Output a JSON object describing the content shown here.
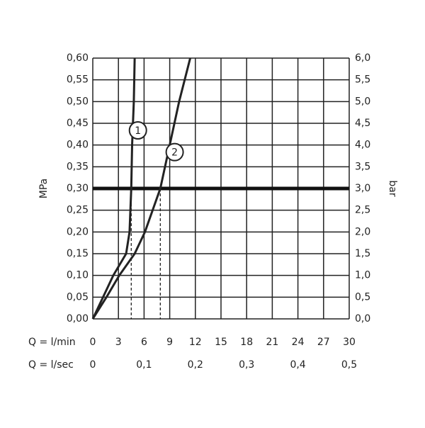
{
  "chart_data": {
    "type": "line",
    "x_label": "Q = l/min",
    "x2_label": "Q = l/sec",
    "y_label": "MPa",
    "y2_label": "bar",
    "xlim": [
      0,
      30
    ],
    "xticks": [
      0,
      3,
      6,
      9,
      12,
      15,
      18,
      21,
      24,
      27,
      30
    ],
    "x2lim": [
      0,
      0.5
    ],
    "x2ticks": [
      0,
      {
        "value": 0.1,
        "label": "0,1"
      },
      {
        "value": 0.2,
        "label": "0,2"
      },
      {
        "value": 0.3,
        "label": "0,3"
      },
      {
        "value": 0.4,
        "label": "0,4"
      },
      {
        "value": 0.5,
        "label": "0,5"
      }
    ],
    "ylim": [
      0,
      0.6
    ],
    "yticks": [
      {
        "value": 0,
        "label": "0,00"
      },
      {
        "value": 0.05,
        "label": "0,05"
      },
      {
        "value": 0.1,
        "label": "0,10"
      },
      {
        "value": 0.15,
        "label": "0,15"
      },
      {
        "value": 0.2,
        "label": "0,20"
      },
      {
        "value": 0.25,
        "label": "0,25"
      },
      {
        "value": 0.3,
        "label": "0,30"
      },
      {
        "value": 0.35,
        "label": "0,35"
      },
      {
        "value": 0.4,
        "label": "0,40"
      },
      {
        "value": 0.45,
        "label": "0,45"
      },
      {
        "value": 0.5,
        "label": "0,50"
      },
      {
        "value": 0.55,
        "label": "0,55"
      },
      {
        "value": 0.6,
        "label": "0,60"
      }
    ],
    "y2lim": [
      0,
      6
    ],
    "y2ticks": [
      {
        "value": 0,
        "label": "0,0"
      },
      {
        "value": 0.5,
        "label": "0,5"
      },
      {
        "value": 1,
        "label": "1,0"
      },
      {
        "value": 1.5,
        "label": "1,5"
      },
      {
        "value": 2,
        "label": "2,0"
      },
      {
        "value": 2.5,
        "label": "2,5"
      },
      {
        "value": 3,
        "label": "3,0"
      },
      {
        "value": 3.5,
        "label": "3,5"
      },
      {
        "value": 4,
        "label": "4,0"
      },
      {
        "value": 4.5,
        "label": "4,5"
      },
      {
        "value": 5,
        "label": "5,0"
      },
      {
        "value": 5.5,
        "label": "5,5"
      },
      {
        "value": 6,
        "label": "6,0"
      }
    ],
    "grid": true,
    "reference_y": 0.3,
    "dashed_x": [
      4.5,
      7.9
    ],
    "series": [
      {
        "name": "1",
        "color": "#222222",
        "x": [
          0,
          1.2,
          2.4,
          3.3,
          3.9,
          4.3,
          4.5,
          4.6,
          4.7,
          4.8,
          4.9
        ],
        "values": [
          0,
          0.05,
          0.1,
          0.13,
          0.15,
          0.2,
          0.3,
          0.4,
          0.45,
          0.5,
          0.6
        ]
      },
      {
        "name": "2",
        "color": "#222222",
        "x": [
          0,
          1.6,
          3.1,
          4.9,
          6.1,
          7.9,
          9.0,
          10.1,
          11.4
        ],
        "values": [
          0,
          0.05,
          0.1,
          0.15,
          0.2,
          0.3,
          0.4,
          0.5,
          0.6
        ]
      }
    ]
  }
}
